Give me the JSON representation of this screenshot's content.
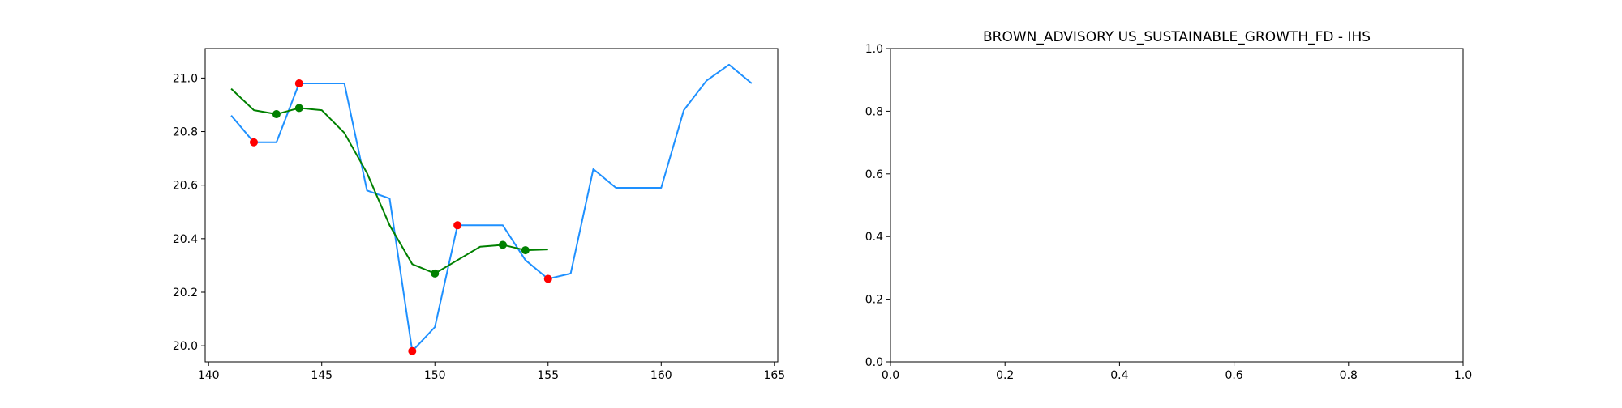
{
  "chart_data": [
    {
      "type": "line",
      "title": "",
      "xlabel": "",
      "ylabel": "",
      "xlim": [
        139.85,
        165.15
      ],
      "ylim": [
        19.94,
        21.11
      ],
      "xticks": [
        140,
        145,
        150,
        155,
        160,
        165
      ],
      "xtick_labels": [
        "140",
        "145",
        "150",
        "155",
        "160",
        "165"
      ],
      "yticks": [
        20.0,
        20.2,
        20.4,
        20.6,
        20.8,
        21.0
      ],
      "ytick_labels": [
        "20.0",
        "20.2",
        "20.4",
        "20.6",
        "20.8",
        "21.0"
      ],
      "grid": false,
      "series": [
        {
          "color": "#1e90ff",
          "style": "line",
          "x": [
            141,
            142,
            143,
            144,
            145,
            146,
            147,
            148,
            149,
            150,
            151,
            152,
            153,
            154,
            155,
            156,
            157,
            158,
            159,
            160,
            161,
            162,
            163,
            164
          ],
          "y": [
            20.86,
            20.76,
            20.76,
            20.98,
            20.98,
            20.98,
            20.58,
            20.55,
            19.98,
            20.07,
            20.45,
            20.45,
            20.45,
            20.32,
            20.25,
            20.27,
            20.66,
            20.59,
            20.59,
            20.59,
            20.88,
            20.99,
            21.05,
            20.98
          ]
        },
        {
          "color": "#008000",
          "style": "line",
          "x": [
            141,
            142,
            143,
            144,
            145,
            146,
            147,
            148,
            149,
            150,
            151,
            152,
            153,
            154,
            155
          ],
          "y": [
            20.96,
            20.88,
            20.865,
            20.888,
            20.88,
            20.795,
            20.645,
            20.45,
            20.305,
            20.27,
            20.32,
            20.37,
            20.377,
            20.357,
            20.36
          ]
        },
        {
          "color": "#ff0000",
          "style": "markers",
          "x": [
            142,
            144,
            149,
            151,
            155
          ],
          "y": [
            20.76,
            20.98,
            19.98,
            20.45,
            20.25
          ]
        },
        {
          "color": "#008000",
          "style": "markers",
          "x": [
            143,
            144,
            150,
            153,
            154
          ],
          "y": [
            20.865,
            20.888,
            20.27,
            20.377,
            20.357
          ]
        }
      ]
    },
    {
      "type": "line",
      "title": "BROWN_ADVISORY US_SUSTAINABLE_GROWTH_FD - IHS",
      "xlabel": "",
      "ylabel": "",
      "xlim": [
        0.0,
        1.0
      ],
      "ylim": [
        0.0,
        1.0
      ],
      "xticks": [
        0.0,
        0.2,
        0.4,
        0.6,
        0.8,
        1.0
      ],
      "xtick_labels": [
        "0.0",
        "0.2",
        "0.4",
        "0.6",
        "0.8",
        "1.0"
      ],
      "yticks": [
        0.0,
        0.2,
        0.4,
        0.6,
        0.8,
        1.0
      ],
      "ytick_labels": [
        "0.0",
        "0.2",
        "0.4",
        "0.6",
        "0.8",
        "1.0"
      ],
      "grid": false,
      "series": []
    }
  ]
}
